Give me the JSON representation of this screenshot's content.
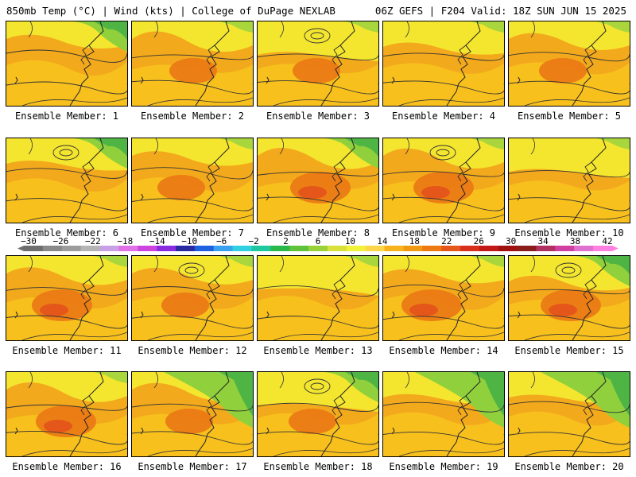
{
  "header": {
    "left": "850mb Temp (°C) | Wind (kts) | College of DuPage NEXLAB",
    "right": "06Z GEFS | F204 Valid: 18Z SUN JUN 15 2025"
  },
  "colorbar": {
    "ticks": [
      "−30",
      "−26",
      "−22",
      "−18",
      "−14",
      "−10",
      "−6",
      "−2",
      "2",
      "6",
      "10",
      "14",
      "18",
      "22",
      "26",
      "30",
      "34",
      "38",
      "42"
    ],
    "colors": [
      "#6e6e6e",
      "#8a8a8a",
      "#9c9c9c",
      "#b4b4b4",
      "#c8a0e6",
      "#e070e6",
      "#cc44dd",
      "#8a2be2",
      "#2a2aa0",
      "#1e60e0",
      "#3aa0f0",
      "#30d0e0",
      "#20c8a0",
      "#2ab84a",
      "#5ec23a",
      "#9ad23a",
      "#d8e03a",
      "#f2f23a",
      "#ffd54a",
      "#f7b21c",
      "#f09a14",
      "#ec7a10",
      "#e5561a",
      "#d8301a",
      "#c21818",
      "#a01010",
      "#8a1c1c",
      "#b03060",
      "#d040a0",
      "#e070d0",
      "#ff80e0"
    ]
  },
  "members": [
    {
      "label": "Ensemble Member: 1"
    },
    {
      "label": "Ensemble Member: 2"
    },
    {
      "label": "Ensemble Member: 3"
    },
    {
      "label": "Ensemble Member: 4"
    },
    {
      "label": "Ensemble Member: 5"
    },
    {
      "label": "Ensemble Member: 6"
    },
    {
      "label": "Ensemble Member: 7"
    },
    {
      "label": "Ensemble Member: 8"
    },
    {
      "label": "Ensemble Member: 9"
    },
    {
      "label": "Ensemble Member: 10"
    },
    {
      "label": "Ensemble Member: 11"
    },
    {
      "label": "Ensemble Member: 12"
    },
    {
      "label": "Ensemble Member: 13"
    },
    {
      "label": "Ensemble Member: 14"
    },
    {
      "label": "Ensemble Member: 15"
    },
    {
      "label": "Ensemble Member: 16"
    },
    {
      "label": "Ensemble Member: 17"
    },
    {
      "label": "Ensemble Member: 18"
    },
    {
      "label": "Ensemble Member: 19"
    },
    {
      "label": "Ensemble Member: 20"
    }
  ]
}
